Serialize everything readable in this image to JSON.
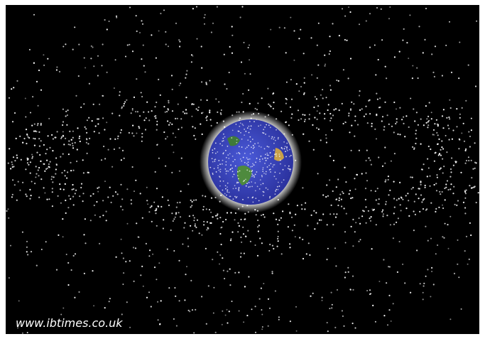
{
  "watermark": "www.ibtimes.co.uk"
}
